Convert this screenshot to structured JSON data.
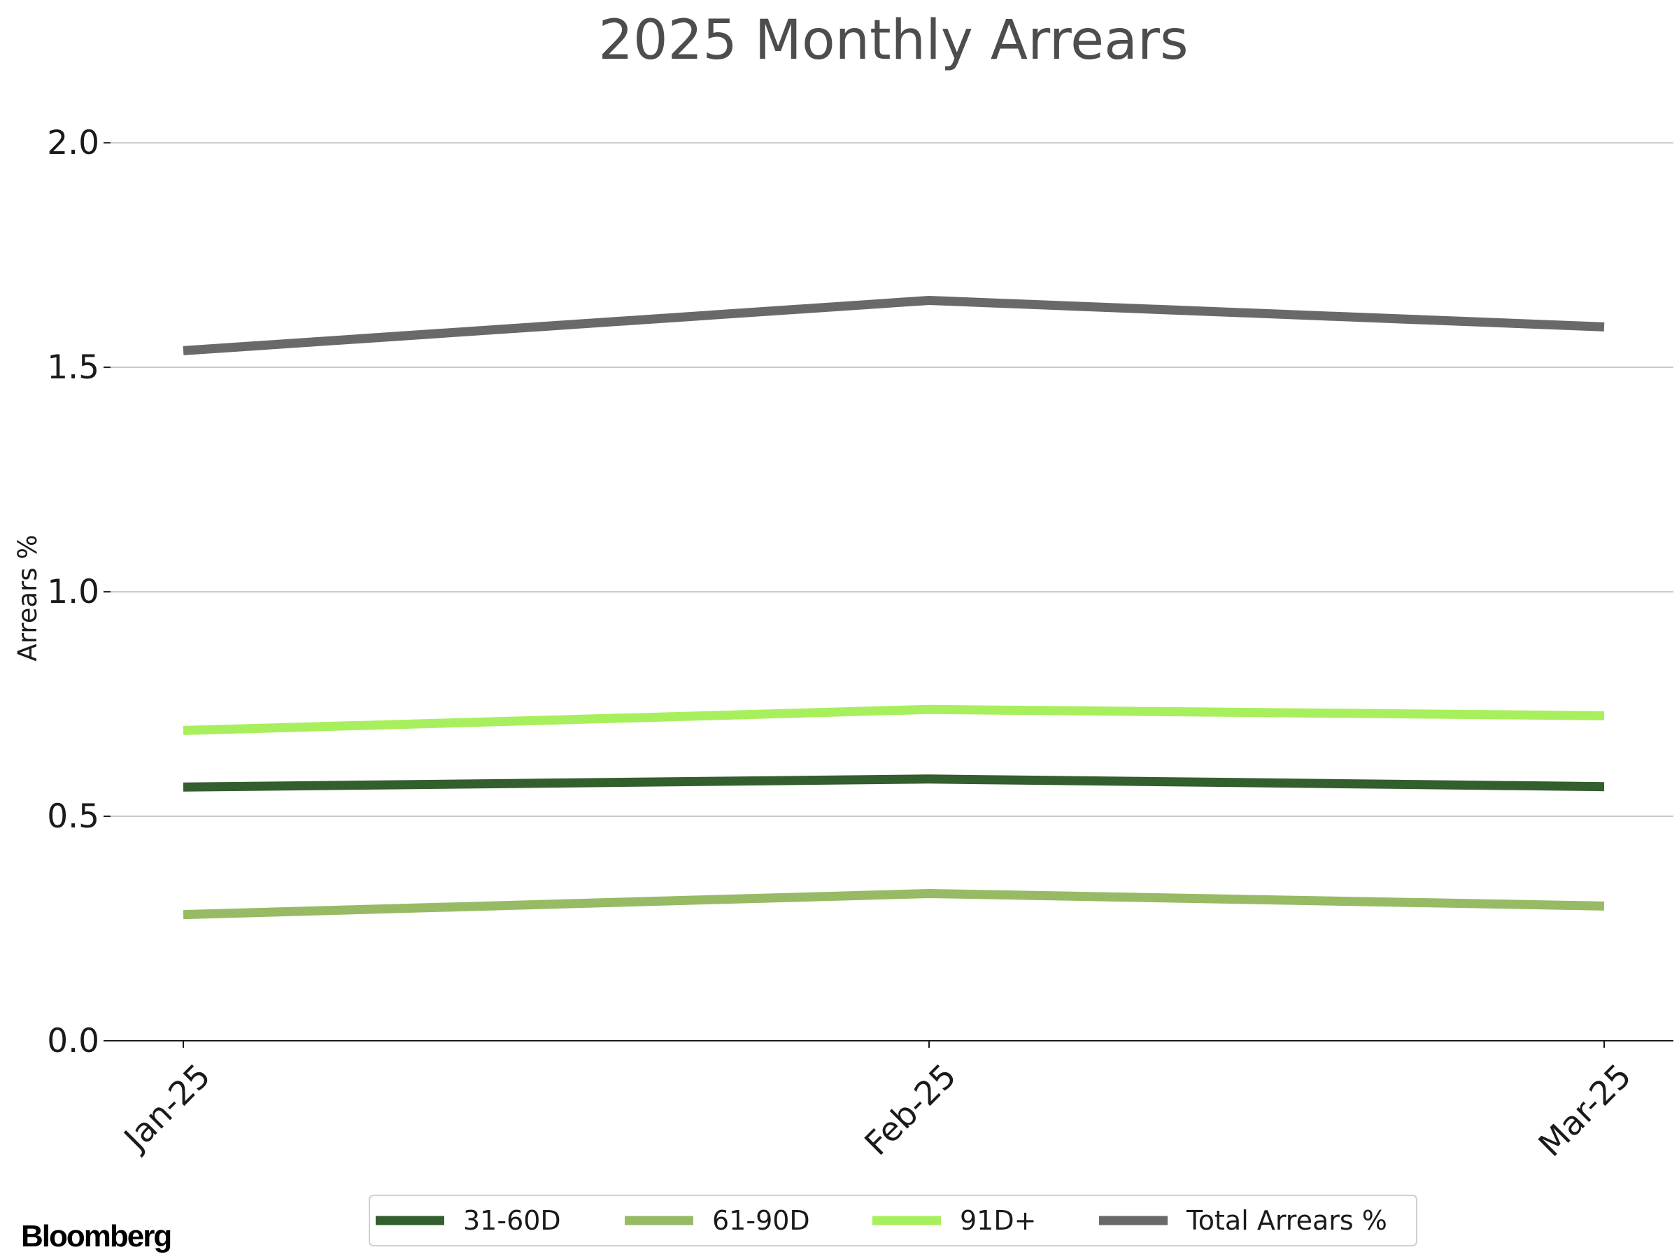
{
  "brand": {
    "logo_text": "Bloomberg"
  },
  "chart_data": {
    "type": "line",
    "title": "2025 Monthly Arrears",
    "xlabel": "",
    "ylabel": "Arrears %",
    "categories": [
      "Jan-25",
      "Feb-25",
      "Mar-25"
    ],
    "ylim": [
      0,
      2.1
    ],
    "yticks": [
      "0.0",
      "0.5",
      "1.0",
      "1.5",
      "2.0"
    ],
    "grid": "horizontal",
    "legend_position": "bottom",
    "series": [
      {
        "name": "31-60D",
        "color": "#335e2d",
        "values": [
          0.565,
          0.583,
          0.566
        ]
      },
      {
        "name": "61-90D",
        "color": "#96bb64",
        "values": [
          0.281,
          0.328,
          0.3
        ]
      },
      {
        "name": "91D+",
        "color": "#a8ef5e",
        "values": [
          0.691,
          0.738,
          0.724
        ]
      },
      {
        "name": "Total Arrears %",
        "color": "#696969",
        "values": [
          1.537,
          1.649,
          1.59
        ]
      }
    ]
  }
}
